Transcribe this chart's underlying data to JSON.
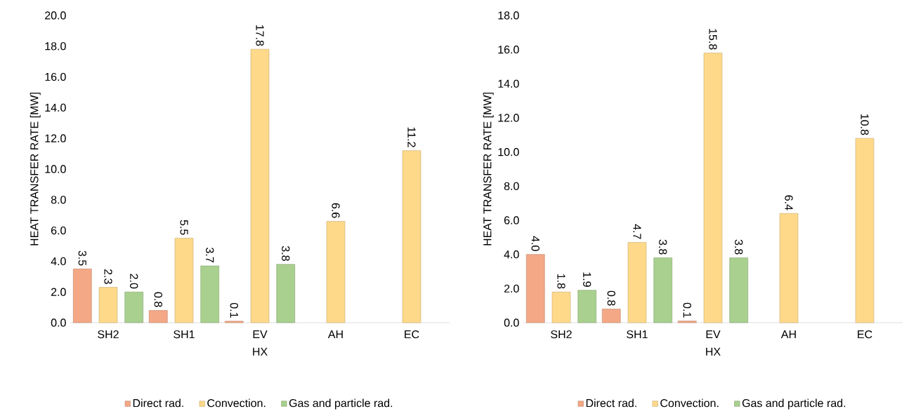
{
  "chart_data": [
    {
      "type": "bar",
      "xlabel": "HX",
      "ylabel": "HEAT TRANSFER RATE [MW]",
      "categories": [
        "SH2",
        "SH1",
        "EV",
        "AH",
        "EC"
      ],
      "ylim": [
        0,
        20
      ],
      "yticks": [
        {
          "value": 0,
          "label": "0.0"
        },
        {
          "value": 2,
          "label": "2.0"
        },
        {
          "value": 4,
          "label": "4.0"
        },
        {
          "value": 6,
          "label": "6.0"
        },
        {
          "value": 8,
          "label": "8.0"
        },
        {
          "value": 10,
          "label": "10.0"
        },
        {
          "value": 12,
          "label": "12.0"
        },
        {
          "value": 14,
          "label": "14.0"
        },
        {
          "value": 16,
          "label": "16.0"
        },
        {
          "value": 18,
          "label": "18.0"
        },
        {
          "value": 20,
          "label": "20.0"
        }
      ],
      "legend": "bottom",
      "series": [
        {
          "name": "Direct rad.",
          "color": "#f4a886",
          "values": [
            3.5,
            0.8,
            0.1,
            null,
            null
          ],
          "value_labels": [
            "3.5",
            "0.8",
            "0.1",
            null,
            null
          ]
        },
        {
          "name": "Convection.",
          "color": "#ffd98a",
          "values": [
            2.3,
            5.5,
            17.8,
            6.6,
            11.2
          ],
          "value_labels": [
            "2.3",
            "5.5",
            "17.8",
            "6.6",
            "11.2"
          ]
        },
        {
          "name": "Gas and particle rad.",
          "color": "#a9d08e",
          "values": [
            2.0,
            3.7,
            3.8,
            null,
            null
          ],
          "value_labels": [
            "2.0",
            "3.7",
            "3.8",
            null,
            null
          ]
        }
      ]
    },
    {
      "type": "bar",
      "xlabel": "HX",
      "ylabel": "HEAT TRANSFER RATE [MW]",
      "categories": [
        "SH2",
        "SH1",
        "EV",
        "AH",
        "EC"
      ],
      "ylim": [
        0,
        18
      ],
      "yticks": [
        {
          "value": 0,
          "label": "0.0"
        },
        {
          "value": 2,
          "label": "2.0"
        },
        {
          "value": 4,
          "label": "4.0"
        },
        {
          "value": 6,
          "label": "6.0"
        },
        {
          "value": 8,
          "label": "8.0"
        },
        {
          "value": 10,
          "label": "10.0"
        },
        {
          "value": 12,
          "label": "12.0"
        },
        {
          "value": 14,
          "label": "14.0"
        },
        {
          "value": 16,
          "label": "16.0"
        },
        {
          "value": 18,
          "label": "18.0"
        }
      ],
      "legend": "bottom",
      "series": [
        {
          "name": "Direct rad.",
          "color": "#f4a886",
          "values": [
            4.0,
            0.8,
            0.1,
            null,
            null
          ],
          "value_labels": [
            "4.0",
            "0.8",
            "0.1",
            null,
            null
          ]
        },
        {
          "name": "Convection.",
          "color": "#ffd98a",
          "values": [
            1.8,
            4.7,
            15.8,
            6.4,
            10.8
          ],
          "value_labels": [
            "1.8",
            "4.7",
            "15.8",
            "6.4",
            "10.8"
          ]
        },
        {
          "name": "Gas and particle rad.",
          "color": "#a9d08e",
          "values": [
            1.9,
            3.8,
            3.8,
            null,
            null
          ],
          "value_labels": [
            "1.9",
            "3.8",
            "3.8",
            null,
            null
          ]
        }
      ]
    }
  ]
}
